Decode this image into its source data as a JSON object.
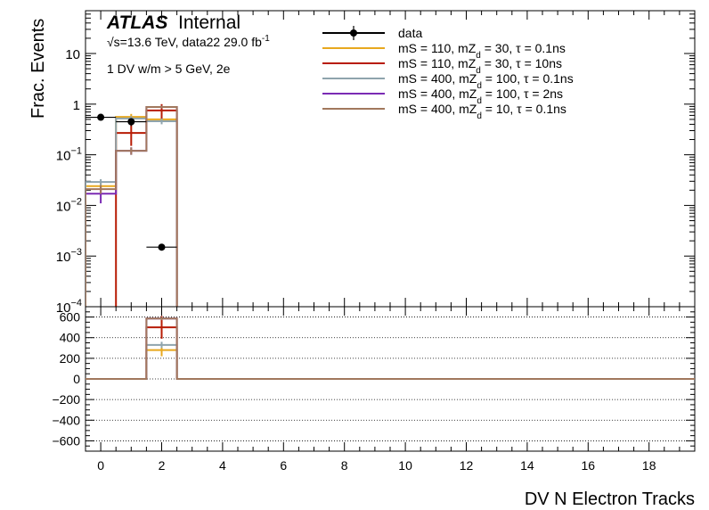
{
  "chart_data": {
    "type": "step-histogram-with-ratio",
    "header": {
      "atlas": "ATLAS",
      "internal": "Internal",
      "energy_line": "√s=13.6 TeV, data22 29.0 fb",
      "energy_sup": "-1",
      "selection": "1 DV w/m > 5 GeV, 2e"
    },
    "xlabel": "DV N Electron Tracks",
    "ylabel_top": "Frac. Events",
    "xlim": [
      -0.5,
      19.5
    ],
    "x_ticks": [
      0,
      2,
      4,
      6,
      8,
      10,
      12,
      14,
      16,
      18
    ],
    "top_panel": {
      "yscale": "log",
      "ylim": [
        0.0001,
        70
      ],
      "y_tick_labels": [
        {
          "v": 0.0001,
          "base": "10",
          "exp": "−4"
        },
        {
          "v": 0.001,
          "base": "10",
          "exp": "−3"
        },
        {
          "v": 0.01,
          "base": "10",
          "exp": "−2"
        },
        {
          "v": 0.1,
          "base": "10",
          "exp": "−1"
        },
        {
          "v": 1,
          "base": "1",
          "exp": ""
        },
        {
          "v": 10,
          "base": "10",
          "exp": ""
        }
      ]
    },
    "bottom_panel": {
      "ylim": [
        -700,
        700
      ],
      "y_ticks": [
        -600,
        -400,
        -200,
        0,
        200,
        400,
        600
      ],
      "y_tick_labels": [
        "−600",
        "−400",
        "−200",
        "0",
        "200",
        "400",
        "600"
      ],
      "gridlines": [
        -600,
        -400,
        -200,
        0,
        200,
        400,
        600
      ]
    },
    "bin_edges": [
      -0.5,
      0.5,
      1.5,
      2.5
    ],
    "data": {
      "name": "data",
      "color": "#000000",
      "points": [
        {
          "x": 0,
          "y": 0.55
        },
        {
          "x": 1,
          "y": 0.45,
          "yerr_low": 0.08,
          "yerr_high": 0.08
        },
        {
          "x": 2,
          "y": 0.0015
        }
      ]
    },
    "legend": [
      {
        "label": "data",
        "marker": true,
        "color": "#000000"
      },
      {
        "label": "mS = 110, mZ",
        "sub": "d",
        "tail": " = 30, τ = 0.1ns",
        "color": "#e8a81e"
      },
      {
        "label": "mS = 110, mZ",
        "sub": "d",
        "tail": " = 30, τ = 10ns",
        "color": "#b81c05"
      },
      {
        "label": "mS = 400, mZ",
        "sub": "d",
        "tail": " = 100, τ = 0.1ns",
        "color": "#8fa4ad"
      },
      {
        "label": "mS = 400, mZ",
        "sub": "d",
        "tail": " = 100, τ = 2ns",
        "color": "#7b2bb4"
      },
      {
        "label": "mS = 400, mZ",
        "sub": "d",
        "tail": " = 10, τ = 0.1ns",
        "color": "#a1785d"
      }
    ],
    "series": [
      {
        "color": "#e8a81e",
        "values": [
          0.024,
          0.56,
          0.5
        ],
        "err_low": [
          0.006,
          0.08,
          0.08
        ],
        "err_high": [
          0.006,
          0.08,
          0.08
        ],
        "ratio": [
          0,
          0,
          280
        ],
        "ratio_err": [
          0,
          0,
          60
        ]
      },
      {
        "color": "#b81c05",
        "values": [
          1e-05,
          0.27,
          0.75
        ],
        "err_low": [
          0,
          0.12,
          0.25
        ],
        "err_high": [
          0,
          0.12,
          0.25
        ],
        "ratio": [
          0,
          0,
          500
        ],
        "ratio_err": [
          0,
          0,
          110
        ]
      },
      {
        "color": "#8fa4ad",
        "values": [
          0.029,
          0.52,
          0.46
        ],
        "err_low": [
          0.004,
          0.06,
          0.06
        ],
        "err_high": [
          0.004,
          0.06,
          0.06
        ],
        "ratio": [
          0,
          0,
          330
        ],
        "ratio_err": [
          0,
          0,
          30
        ]
      },
      {
        "color": "#7b2bb4",
        "values": [
          0.017,
          0.12,
          0.88
        ],
        "err_low": [
          0.006,
          0.02,
          0.05
        ],
        "err_high": [
          0.006,
          0.02,
          0.05
        ],
        "ratio": [
          0,
          0,
          585
        ],
        "ratio_err": [
          0,
          0,
          15
        ]
      },
      {
        "color": "#a1785d",
        "values": [
          0.021,
          0.12,
          0.88
        ],
        "err_low": [
          0.004,
          0.02,
          0.05
        ],
        "err_high": [
          0.004,
          0.02,
          0.05
        ],
        "ratio": [
          0,
          0,
          585
        ],
        "ratio_err": [
          0,
          0,
          15
        ]
      }
    ]
  }
}
